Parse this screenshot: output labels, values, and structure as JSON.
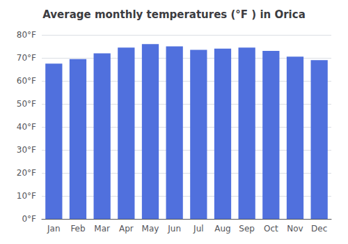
{
  "chart_data": {
    "type": "bar",
    "title": "Average monthly temperatures (°F ) in Orica",
    "categories": [
      "Jan",
      "Feb",
      "Mar",
      "Apr",
      "May",
      "Jun",
      "Jul",
      "Aug",
      "Sep",
      "Oct",
      "Nov",
      "Dec"
    ],
    "values": [
      67.5,
      69.5,
      72,
      74.5,
      76,
      75,
      73.5,
      74,
      74.5,
      73,
      70.5,
      69
    ],
    "ylim": [
      0,
      80
    ],
    "yticks": [
      {
        "value": 0,
        "label": "0°F"
      },
      {
        "value": 10,
        "label": "10°F"
      },
      {
        "value": 20,
        "label": "20°F"
      },
      {
        "value": 30,
        "label": "30°F"
      },
      {
        "value": 40,
        "label": "40°F"
      },
      {
        "value": 50,
        "label": "50°F"
      },
      {
        "value": 60,
        "label": "60°F"
      },
      {
        "value": 70,
        "label": "70°F"
      },
      {
        "value": 80,
        "label": "80°F"
      }
    ],
    "grid": true
  }
}
